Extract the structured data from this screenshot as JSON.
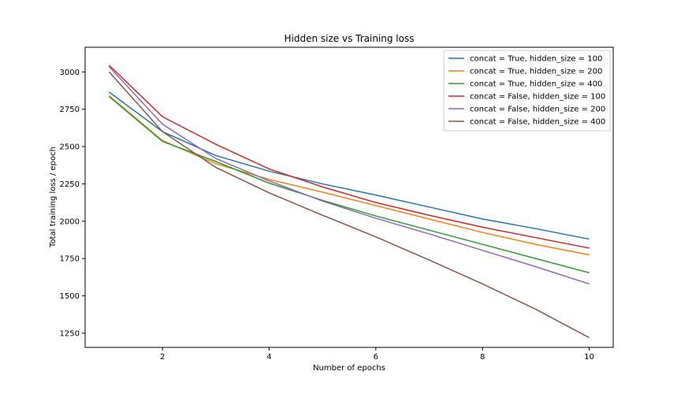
{
  "chart_data": {
    "type": "line",
    "title": "Hidden size vs Training loss",
    "xlabel": "Number of epochs",
    "ylabel": "Total training loss / epoch",
    "xlim": [
      0.55,
      10.45
    ],
    "ylim": [
      1155,
      3165
    ],
    "xticks": [
      2,
      4,
      6,
      8,
      10
    ],
    "yticks": [
      1250,
      1500,
      1750,
      2000,
      2250,
      2500,
      2750,
      3000
    ],
    "grid": false,
    "legend_position": "top-right",
    "x": [
      1,
      2,
      3,
      4,
      5,
      6,
      7,
      8,
      9,
      10
    ],
    "series": [
      {
        "name": "concat = True, hidden_size = 100",
        "color": "#1f77b4",
        "values": [
          2865,
          2600,
          2440,
          2335,
          2250,
          2175,
          2095,
          2015,
          1950,
          1880
        ]
      },
      {
        "name": "concat = True, hidden_size = 200",
        "color": "#ff7f0e",
        "values": [
          2840,
          2540,
          2385,
          2280,
          2195,
          2105,
          2015,
          1925,
          1845,
          1775
        ]
      },
      {
        "name": "concat = True, hidden_size = 400",
        "color": "#2ca02c",
        "values": [
          2835,
          2535,
          2400,
          2255,
          2140,
          2035,
          1940,
          1845,
          1750,
          1655
        ]
      },
      {
        "name": "concat = False, hidden_size = 100",
        "color": "#d62728",
        "values": [
          3045,
          2700,
          2515,
          2350,
          2230,
          2125,
          2040,
          1960,
          1890,
          1820
        ]
      },
      {
        "name": "concat = False, hidden_size = 200",
        "color": "#9467bd",
        "values": [
          3035,
          2650,
          2420,
          2270,
          2135,
          2020,
          1915,
          1805,
          1695,
          1580
        ]
      },
      {
        "name": "concat = False, hidden_size = 400",
        "color": "#8c564b",
        "values": [
          3000,
          2600,
          2360,
          2190,
          2040,
          1895,
          1740,
          1580,
          1410,
          1220
        ]
      }
    ]
  }
}
